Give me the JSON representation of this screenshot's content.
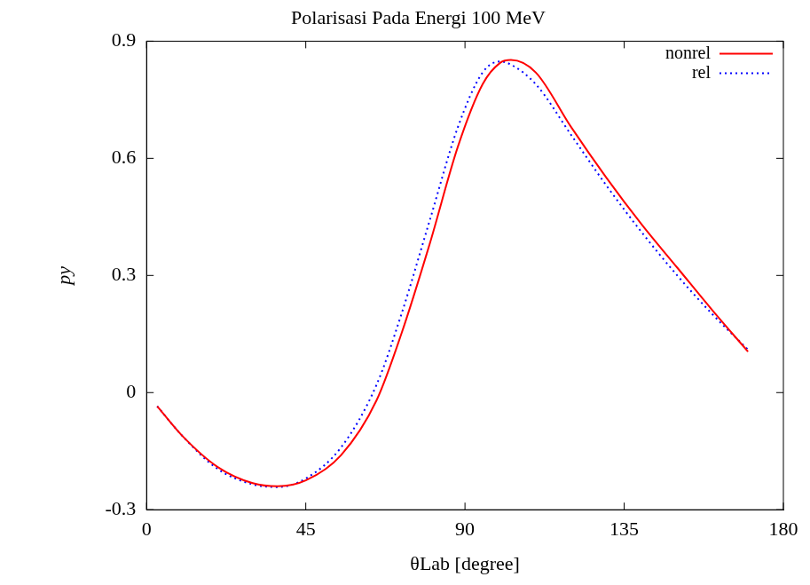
{
  "chart_data": {
    "type": "line",
    "title": "Polarisasi Pada Energi 100 MeV",
    "x_label": "θLab [degree]",
    "y_label": "py",
    "x": [
      3,
      10,
      20,
      30,
      37,
      45,
      55,
      65,
      72,
      80,
      88,
      95,
      100,
      103,
      110,
      120,
      130,
      140,
      150,
      160,
      170
    ],
    "series": [
      {
        "name": "nonrel",
        "color": "#ff0000",
        "line_style": "solid",
        "values": [
          -0.035,
          -0.11,
          -0.19,
          -0.232,
          -0.24,
          -0.225,
          -0.16,
          -0.02,
          0.15,
          0.38,
          0.63,
          0.79,
          0.845,
          0.852,
          0.82,
          0.68,
          0.55,
          0.43,
          0.32,
          0.21,
          0.105
        ]
      },
      {
        "name": "rel",
        "color": "#0000ff",
        "line_style": "dotted",
        "values": [
          -0.035,
          -0.11,
          -0.195,
          -0.235,
          -0.242,
          -0.22,
          -0.14,
          0.02,
          0.2,
          0.44,
          0.68,
          0.82,
          0.848,
          0.84,
          0.79,
          0.66,
          0.53,
          0.41,
          0.3,
          0.2,
          0.11
        ]
      }
    ],
    "xlim": [
      0,
      180
    ],
    "xticks": [
      0,
      45,
      90,
      135,
      180
    ],
    "ylim": [
      -0.3,
      0.9
    ],
    "yticks": [
      -0.3,
      0,
      0.3,
      0.6,
      0.9
    ],
    "grid": false,
    "legend": "upper right"
  }
}
